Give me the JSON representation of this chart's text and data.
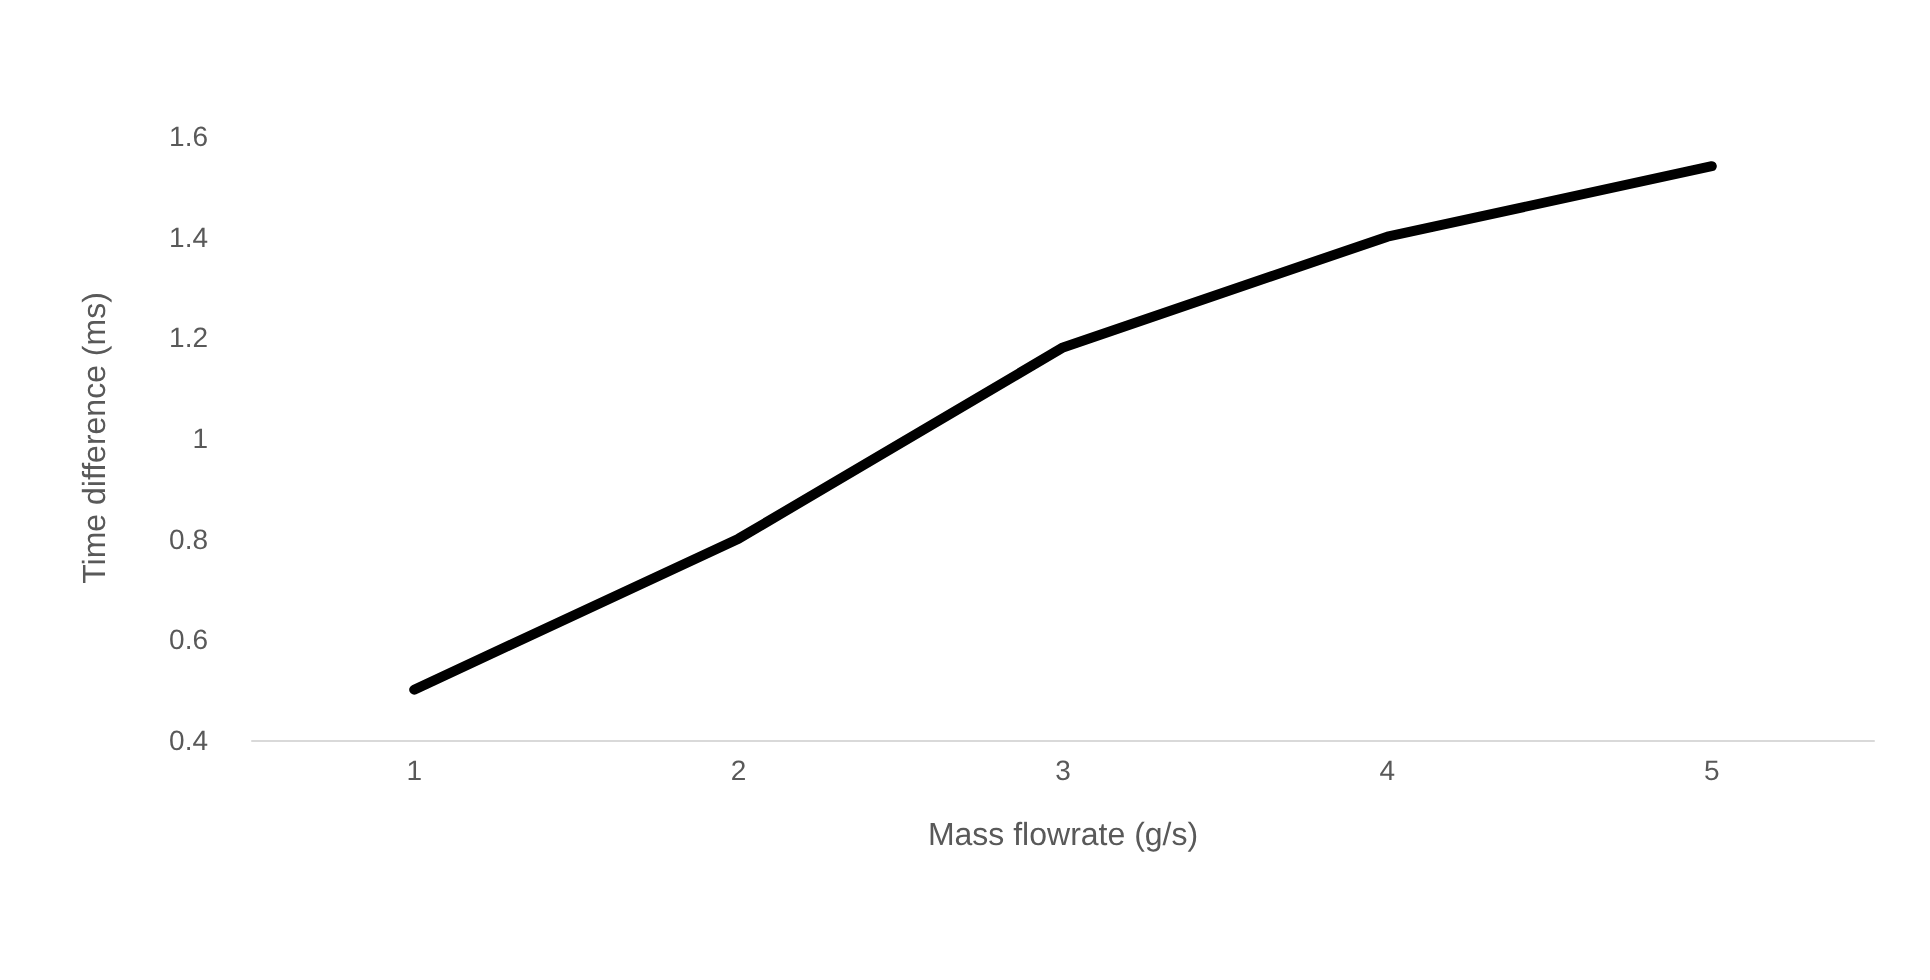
{
  "chart_data": {
    "type": "line",
    "xlabel": "Mass flowrate (g/s)",
    "ylabel": "Time difference (ms)",
    "categories": [
      "1",
      "2",
      "3",
      "4",
      "5"
    ],
    "series": [
      {
        "color": "#000000",
        "values": [
          0.5,
          0.8,
          1.18,
          1.4,
          1.54
        ]
      }
    ],
    "ylim": [
      0.4,
      1.6
    ],
    "yticks": [
      0.4,
      0.6,
      0.8,
      1,
      1.2,
      1.4,
      1.6
    ],
    "grid": false,
    "marker": "none",
    "line_style": "solid"
  }
}
